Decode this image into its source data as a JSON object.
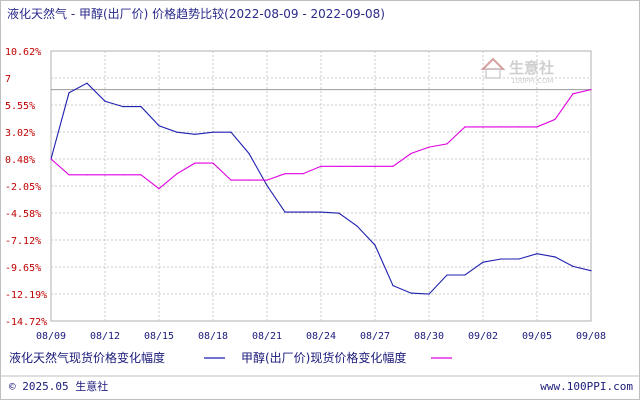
{
  "colors": {
    "series1": "#1f1fb0",
    "series2": "#e000e0",
    "grid": "#c8c8c8",
    "ref_line": "#999999",
    "axis_text_y": "#c00000",
    "axis_text_x": "#1a1a7a"
  },
  "chart_data": {
    "type": "line",
    "title": "液化天然气 - 甲醇(出厂价) 价格趋势比较(2022-08-09 - 2022-09-08)",
    "ylim": [
      -14.72,
      10.62
    ],
    "y_ticks": [
      "10.62%",
      "7",
      "5.55%",
      "3.02%",
      "0.48%",
      "-2.05%",
      "-4.58%",
      "-7.12%",
      "-9.65%",
      "-12.19%",
      "-14.72%"
    ],
    "x_ticks": [
      "08/09",
      "08/12",
      "08/15",
      "08/18",
      "08/21",
      "08/24",
      "08/27",
      "08/30",
      "09/02",
      "09/05",
      "09/08"
    ],
    "reference_value": 7,
    "grid": true,
    "legend_position": "bottom",
    "series": [
      {
        "name": "液化天然气现货价格变化幅度",
        "x": [
          0,
          1,
          2,
          3,
          4,
          5,
          6,
          7,
          8,
          9,
          10,
          11,
          12,
          13,
          14,
          15,
          16,
          17,
          18,
          19,
          20,
          21,
          22,
          23,
          24,
          25,
          26,
          27,
          28,
          29,
          30
        ],
        "values": [
          0.48,
          6.7,
          7.6,
          5.9,
          5.4,
          5.4,
          3.6,
          3.0,
          2.8,
          3.0,
          3.0,
          1.0,
          -2.0,
          -4.5,
          -4.5,
          -4.5,
          -4.6,
          -5.8,
          -7.6,
          -11.4,
          -12.1,
          -12.2,
          -10.4,
          -10.4,
          -9.2,
          -8.9,
          -8.9,
          -8.4,
          -8.7,
          -9.6,
          -10.0
        ]
      },
      {
        "name": "甲醇(出厂价)现货价格变化幅度",
        "x": [
          0,
          1,
          2,
          3,
          4,
          5,
          6,
          7,
          8,
          9,
          10,
          11,
          12,
          13,
          14,
          15,
          16,
          17,
          18,
          19,
          20,
          21,
          22,
          23,
          24,
          25,
          26,
          27,
          28,
          29,
          30
        ],
        "values": [
          0.48,
          -1.0,
          -1.0,
          -1.0,
          -1.0,
          -1.0,
          -2.3,
          -0.9,
          0.1,
          0.1,
          -1.5,
          -1.5,
          -1.5,
          -0.9,
          -0.9,
          -0.2,
          -0.2,
          -0.2,
          -0.2,
          -0.2,
          1.0,
          1.6,
          1.9,
          3.5,
          3.5,
          3.5,
          3.5,
          3.5,
          4.2,
          6.6,
          7.0
        ]
      }
    ]
  },
  "watermark": {
    "text": "生意社",
    "sub": "100PPI.COM"
  },
  "footer": {
    "copyright": "© 2025.05 生意社",
    "url": "www.100PPI.com"
  }
}
